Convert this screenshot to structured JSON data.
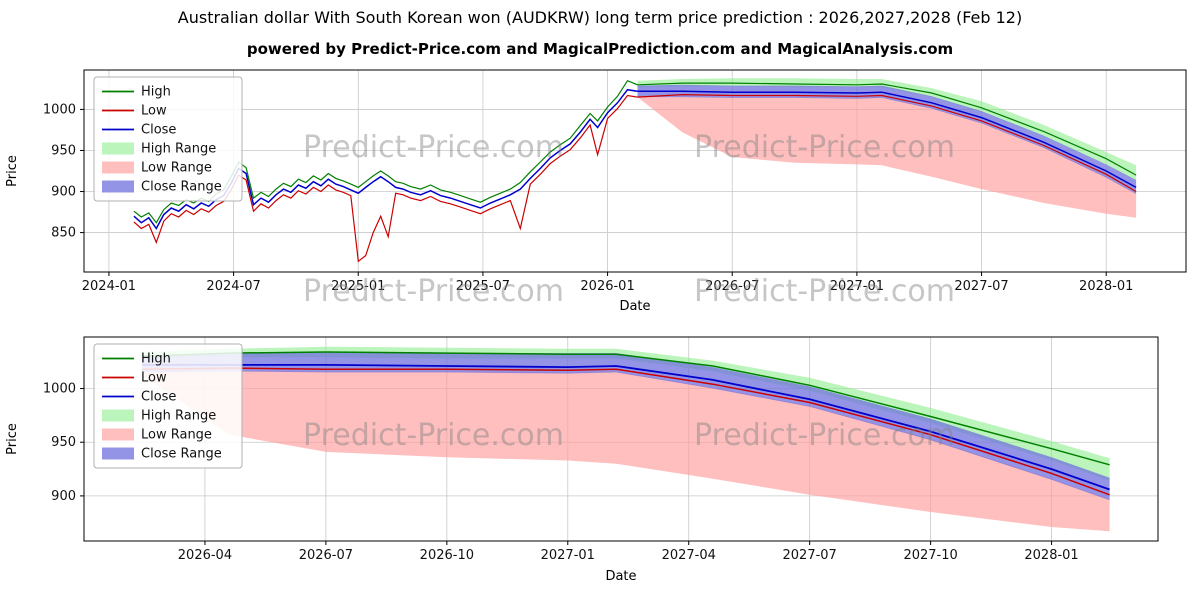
{
  "page": {
    "title": "Australian dollar With South Korean won (AUDKRW) long term price prediction : 2026,2027,2028 (Feb 12)",
    "subtitle": "powered by Predict-Price.com and MagicalPrediction.com and MagicalAnalysis.com",
    "watermark": "Predict-Price.com"
  },
  "chart_data": [
    {
      "type": "line",
      "title": "",
      "xlabel": "Date",
      "ylabel": "Price",
      "xlim": [
        2023.9,
        2028.32
      ],
      "ylim": [
        802,
        1048
      ],
      "grid": true,
      "legend_position": "upper left",
      "x_ticks": {
        "values": [
          2024.0,
          2024.5,
          2025.0,
          2025.5,
          2026.0,
          2026.5,
          2027.0,
          2027.5,
          2028.0
        ],
        "labels": [
          "2024-01",
          "2024-07",
          "2025-01",
          "2025-07",
          "2026-01",
          "2026-07",
          "2027-01",
          "2027-07",
          "2028-01"
        ]
      },
      "y_ticks": {
        "values": [
          850,
          900,
          950,
          1000
        ],
        "labels": [
          "850",
          "900",
          "950",
          "1000"
        ]
      },
      "legend": [
        {
          "label": "High",
          "kind": "line",
          "color": "#008000"
        },
        {
          "label": "Low",
          "kind": "line",
          "color": "#cc0000"
        },
        {
          "label": "Close",
          "kind": "line",
          "color": "#0000cc"
        },
        {
          "label": "High Range",
          "kind": "patch",
          "color": "#90ee90",
          "opacity": 0.6
        },
        {
          "label": "Low Range",
          "kind": "patch",
          "color": "#ff9d9d",
          "opacity": 0.65
        },
        {
          "label": "Close Range",
          "kind": "patch",
          "color": "#7070dd",
          "opacity": 0.75
        }
      ],
      "series": [
        {
          "name": "High",
          "color": "#008000",
          "width": 1.2,
          "x": [
            2024.1,
            2024.13,
            2024.16,
            2024.19,
            2024.22,
            2024.25,
            2024.28,
            2024.31,
            2024.34,
            2024.37,
            2024.4,
            2024.43,
            2024.46,
            2024.49,
            2024.52,
            2024.55,
            2024.58,
            2024.61,
            2024.64,
            2024.67,
            2024.7,
            2024.73,
            2024.76,
            2024.79,
            2024.82,
            2024.85,
            2024.88,
            2024.91,
            2024.94,
            2024.97,
            2025.0,
            2025.03,
            2025.06,
            2025.09,
            2025.12,
            2025.15,
            2025.18,
            2025.21,
            2025.25,
            2025.29,
            2025.33,
            2025.37,
            2025.41,
            2025.45,
            2025.49,
            2025.53,
            2025.57,
            2025.61,
            2025.65,
            2025.69,
            2025.73,
            2025.77,
            2025.81,
            2025.85,
            2025.89,
            2025.93,
            2025.96,
            2026.0,
            2026.04,
            2026.08,
            2026.12,
            2026.3,
            2026.5,
            2026.75,
            2027.0,
            2027.1,
            2027.3,
            2027.5,
            2027.75,
            2028.0,
            2028.12
          ],
          "y": [
            876,
            869,
            874,
            862,
            878,
            886,
            883,
            890,
            886,
            892,
            888,
            897,
            902,
            918,
            936,
            929,
            892,
            899,
            894,
            903,
            910,
            906,
            915,
            911,
            919,
            914,
            922,
            916,
            913,
            909,
            905,
            912,
            919,
            925,
            919,
            912,
            910,
            906,
            903,
            908,
            902,
            899,
            895,
            891,
            887,
            893,
            898,
            903,
            911,
            924,
            936,
            948,
            957,
            965,
            980,
            995,
            986,
            1003,
            1016,
            1035,
            1030,
            1032,
            1032,
            1031,
            1030,
            1031,
            1020,
            1002,
            973,
            940,
            920
          ]
        },
        {
          "name": "Low",
          "color": "#cc0000",
          "width": 1.2,
          "x": [
            2024.1,
            2024.13,
            2024.16,
            2024.19,
            2024.22,
            2024.25,
            2024.28,
            2024.31,
            2024.34,
            2024.37,
            2024.4,
            2024.43,
            2024.46,
            2024.49,
            2024.52,
            2024.55,
            2024.58,
            2024.61,
            2024.64,
            2024.67,
            2024.7,
            2024.73,
            2024.76,
            2024.79,
            2024.82,
            2024.85,
            2024.88,
            2024.91,
            2024.94,
            2024.97,
            2025.0,
            2025.03,
            2025.06,
            2025.09,
            2025.12,
            2025.15,
            2025.18,
            2025.21,
            2025.25,
            2025.29,
            2025.33,
            2025.37,
            2025.41,
            2025.45,
            2025.49,
            2025.53,
            2025.57,
            2025.61,
            2025.65,
            2025.69,
            2025.73,
            2025.77,
            2025.81,
            2025.85,
            2025.89,
            2025.93,
            2025.96,
            2026.0,
            2026.04,
            2026.08,
            2026.12,
            2026.3,
            2026.5,
            2026.75,
            2027.0,
            2027.1,
            2027.3,
            2027.5,
            2027.75,
            2028.0,
            2028.12
          ],
          "y": [
            863,
            855,
            860,
            838,
            864,
            873,
            869,
            877,
            872,
            879,
            875,
            883,
            888,
            902,
            920,
            914,
            876,
            885,
            880,
            889,
            896,
            892,
            901,
            897,
            905,
            900,
            908,
            902,
            899,
            895,
            815,
            822,
            850,
            870,
            845,
            898,
            896,
            892,
            889,
            894,
            888,
            885,
            881,
            877,
            873,
            879,
            884,
            889,
            855,
            909,
            921,
            934,
            943,
            951,
            965,
            981,
            945,
            989,
            1001,
            1017,
            1015,
            1018,
            1017,
            1017,
            1016,
            1017,
            1004,
            986,
            956,
            921,
            900
          ]
        },
        {
          "name": "Close",
          "color": "#0000cc",
          "width": 1.5,
          "x": [
            2024.1,
            2024.13,
            2024.16,
            2024.19,
            2024.22,
            2024.25,
            2024.28,
            2024.31,
            2024.34,
            2024.37,
            2024.4,
            2024.43,
            2024.46,
            2024.49,
            2024.52,
            2024.55,
            2024.58,
            2024.61,
            2024.64,
            2024.67,
            2024.7,
            2024.73,
            2024.76,
            2024.79,
            2024.82,
            2024.85,
            2024.88,
            2024.91,
            2024.94,
            2024.97,
            2025.0,
            2025.03,
            2025.06,
            2025.09,
            2025.12,
            2025.15,
            2025.18,
            2025.21,
            2025.25,
            2025.29,
            2025.33,
            2025.37,
            2025.41,
            2025.45,
            2025.49,
            2025.53,
            2025.57,
            2025.61,
            2025.65,
            2025.69,
            2025.73,
            2025.77,
            2025.81,
            2025.85,
            2025.89,
            2025.93,
            2025.96,
            2026.0,
            2026.04,
            2026.08,
            2026.12,
            2026.3,
            2026.5,
            2026.75,
            2027.0,
            2027.1,
            2027.3,
            2027.5,
            2027.75,
            2028.0,
            2028.12
          ],
          "y": [
            870,
            862,
            868,
            855,
            872,
            880,
            876,
            884,
            879,
            886,
            882,
            890,
            895,
            910,
            928,
            922,
            884,
            892,
            887,
            896,
            903,
            899,
            908,
            904,
            912,
            907,
            915,
            909,
            906,
            902,
            898,
            905,
            912,
            918,
            912,
            905,
            903,
            899,
            896,
            901,
            895,
            892,
            888,
            884,
            880,
            886,
            891,
            896,
            903,
            916,
            928,
            941,
            950,
            958,
            972,
            988,
            978,
            996,
            1008,
            1024,
            1022,
            1022,
            1021,
            1021,
            1020,
            1021,
            1008,
            990,
            960,
            925,
            905
          ]
        }
      ],
      "bands": [
        {
          "name": "High Range",
          "color": "#90ee90",
          "opacity": 0.6,
          "x": [
            2026.12,
            2026.3,
            2026.5,
            2026.75,
            2027.0,
            2027.1,
            2027.3,
            2027.5,
            2027.75,
            2028.0,
            2028.12
          ],
          "upper": [
            1035,
            1037,
            1038,
            1038,
            1037,
            1037,
            1026,
            1010,
            981,
            948,
            932
          ],
          "lower": [
            1027,
            1028,
            1028,
            1027,
            1027,
            1027,
            1015,
            997,
            967,
            933,
            913
          ]
        },
        {
          "name": "Low Range",
          "color": "#ff9d9d",
          "opacity": 0.65,
          "x": [
            2026.12,
            2026.3,
            2026.5,
            2026.75,
            2027.0,
            2027.1,
            2027.3,
            2027.5,
            2027.75,
            2028.0,
            2028.12
          ],
          "upper": [
            1016,
            1016,
            1015,
            1015,
            1014,
            1015,
            1002,
            984,
            954,
            918,
            898
          ],
          "lower": [
            1015,
            972,
            942,
            935,
            933,
            932,
            918,
            903,
            886,
            873,
            868
          ]
        },
        {
          "name": "Close Range",
          "color": "#7070dd",
          "opacity": 0.75,
          "x": [
            2026.12,
            2026.3,
            2026.5,
            2026.75,
            2027.0,
            2027.1,
            2027.3,
            2027.5,
            2027.75,
            2028.0,
            2028.12
          ],
          "upper": [
            1029,
            1030,
            1029,
            1029,
            1028,
            1029,
            1016,
            998,
            968,
            933,
            914
          ],
          "lower": [
            1015,
            1015,
            1014,
            1014,
            1013,
            1014,
            1001,
            983,
            953,
            917,
            897
          ]
        }
      ]
    },
    {
      "type": "line",
      "title": "",
      "xlabel": "Date",
      "ylabel": "Price",
      "xlim": [
        2026.0,
        2028.22
      ],
      "ylim": [
        858,
        1048
      ],
      "grid": true,
      "legend_position": "upper left",
      "x_ticks": {
        "values": [
          2026.25,
          2026.5,
          2026.75,
          2027.0,
          2027.25,
          2027.5,
          2027.75,
          2028.0
        ],
        "labels": [
          "2026-04",
          "2026-07",
          "2026-10",
          "2027-01",
          "2027-04",
          "2027-07",
          "2027-10",
          "2028-01"
        ]
      },
      "y_ticks": {
        "values": [
          900,
          950,
          1000
        ],
        "labels": [
          "900",
          "950",
          "1000"
        ]
      },
      "legend": [
        {
          "label": "High",
          "kind": "line",
          "color": "#008000"
        },
        {
          "label": "Low",
          "kind": "line",
          "color": "#cc0000"
        },
        {
          "label": "Close",
          "kind": "line",
          "color": "#0000cc"
        },
        {
          "label": "High Range",
          "kind": "patch",
          "color": "#90ee90",
          "opacity": 0.6
        },
        {
          "label": "Low Range",
          "kind": "patch",
          "color": "#ff9d9d",
          "opacity": 0.65
        },
        {
          "label": "Close Range",
          "kind": "patch",
          "color": "#7070dd",
          "opacity": 0.75
        }
      ],
      "series": [
        {
          "name": "High",
          "color": "#008000",
          "width": 1.5,
          "x": [
            2026.12,
            2026.3,
            2026.5,
            2026.75,
            2027.0,
            2027.1,
            2027.3,
            2027.5,
            2027.75,
            2028.0,
            2028.12
          ],
          "y": [
            1030,
            1033,
            1034,
            1033,
            1032,
            1032,
            1021,
            1003,
            974,
            944,
            929
          ]
        },
        {
          "name": "Low",
          "color": "#cc0000",
          "width": 1.5,
          "x": [
            2026.12,
            2026.3,
            2026.5,
            2026.75,
            2027.0,
            2027.1,
            2027.3,
            2027.5,
            2027.75,
            2028.0,
            2028.12
          ],
          "y": [
            1018,
            1019,
            1018,
            1018,
            1017,
            1018,
            1004,
            987,
            957,
            921,
            901
          ]
        },
        {
          "name": "Close",
          "color": "#0000cc",
          "width": 1.8,
          "x": [
            2026.12,
            2026.3,
            2026.5,
            2026.75,
            2027.0,
            2027.1,
            2027.3,
            2027.5,
            2027.75,
            2028.0,
            2028.12
          ],
          "y": [
            1022,
            1022,
            1022,
            1021,
            1020,
            1021,
            1008,
            990,
            960,
            925,
            906
          ]
        }
      ],
      "bands": [
        {
          "name": "High Range",
          "color": "#90ee90",
          "opacity": 0.6,
          "x": [
            2026.12,
            2026.3,
            2026.5,
            2026.75,
            2027.0,
            2027.1,
            2027.3,
            2027.5,
            2027.75,
            2028.0,
            2028.12
          ],
          "upper": [
            1034,
            1037,
            1039,
            1038,
            1037,
            1037,
            1026,
            1010,
            982,
            951,
            935
          ],
          "lower": [
            1027,
            1029,
            1029,
            1028,
            1028,
            1028,
            1016,
            998,
            968,
            933,
            914
          ]
        },
        {
          "name": "Low Range",
          "color": "#ff9d9d",
          "opacity": 0.65,
          "x": [
            2026.12,
            2026.3,
            2026.5,
            2026.75,
            2027.0,
            2027.1,
            2027.3,
            2027.5,
            2027.75,
            2028.0,
            2028.12
          ],
          "upper": [
            1016,
            1017,
            1016,
            1016,
            1015,
            1016,
            1001,
            984,
            953,
            916,
            897
          ],
          "lower": [
            1013,
            957,
            941,
            936,
            933,
            930,
            916,
            901,
            885,
            871,
            867
          ]
        },
        {
          "name": "Close Range",
          "color": "#7070dd",
          "opacity": 0.75,
          "x": [
            2026.12,
            2026.3,
            2026.5,
            2026.75,
            2027.0,
            2027.1,
            2027.3,
            2027.5,
            2027.75,
            2028.0,
            2028.12
          ],
          "upper": [
            1031,
            1033,
            1034,
            1033,
            1033,
            1033,
            1020,
            1002,
            972,
            936,
            917
          ],
          "lower": [
            1015,
            1016,
            1015,
            1015,
            1014,
            1015,
            1000,
            983,
            952,
            915,
            896
          ]
        }
      ]
    }
  ]
}
